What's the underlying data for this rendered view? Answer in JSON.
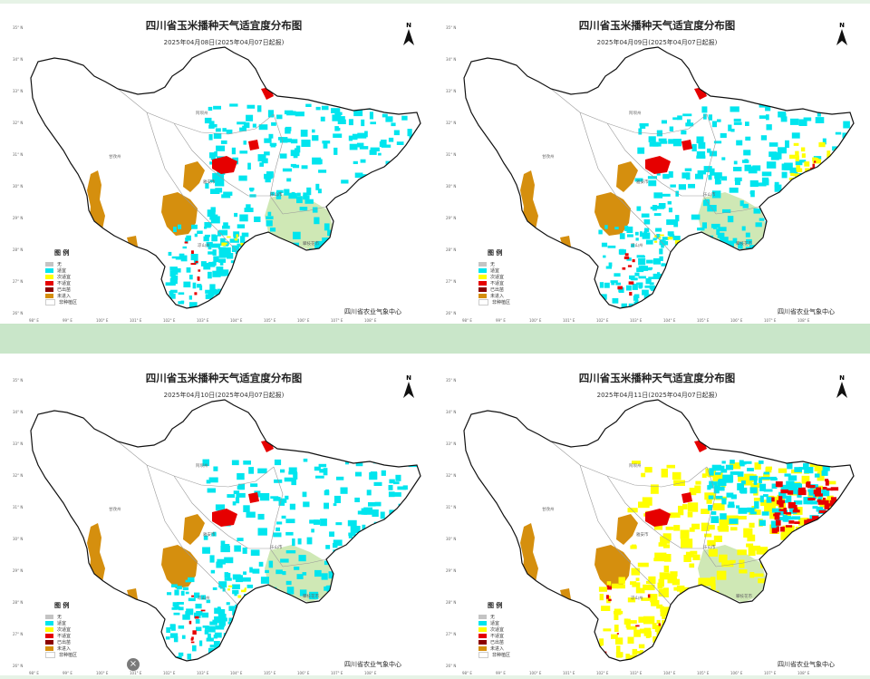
{
  "maps": [
    {
      "title": "四川省玉米播种天气适宜度分布图",
      "subtitle": "2025年04月08日(2025年04月07日起报)",
      "variant": "cyan"
    },
    {
      "title": "四川省玉米播种天气适宜度分布图",
      "subtitle": "2025年04月09日(2025年04月07日起报)",
      "variant": "cyan-ne"
    },
    {
      "title": "四川省玉米播种天气适宜度分布图",
      "subtitle": "2025年04月10日(2025年04月07日起报)",
      "variant": "cyan"
    },
    {
      "title": "四川省玉米播种天气适宜度分布图",
      "subtitle": "2025年04月11日(2025年04月07日起报)",
      "variant": "yellow"
    }
  ],
  "north_label": "N",
  "agency": "四川省农业气象中心",
  "legend_title": "图 例",
  "legend_items": [
    {
      "label": "无",
      "color": "#c4c4c4"
    },
    {
      "label": "适宜",
      "color": "#00e5ee"
    },
    {
      "label": "次适宜",
      "color": "#ffff00"
    },
    {
      "label": "不适宜",
      "color": "#e60000"
    },
    {
      "label": "已出苗",
      "color": "#8b0000"
    },
    {
      "label": "未进入",
      "color": "#d58f0e"
    },
    {
      "label": "非种植区",
      "color": "#ffffff"
    }
  ],
  "lat_ticks": [
    "35° N",
    "34° N",
    "33° N",
    "32° N",
    "31° N",
    "30° N",
    "29° N",
    "28° N",
    "27° N",
    "26° N"
  ],
  "lon_ticks": [
    "98° E",
    "99° E",
    "100° E",
    "101° E",
    "102° E",
    "103° E",
    "104° E",
    "105° E",
    "106° E",
    "107° E",
    "108° E"
  ],
  "region_labels": [
    "阿坝州",
    "甘孜州",
    "雅安市",
    "乐山市",
    "凉山州",
    "攀枝花市"
  ],
  "close_icon": "×"
}
